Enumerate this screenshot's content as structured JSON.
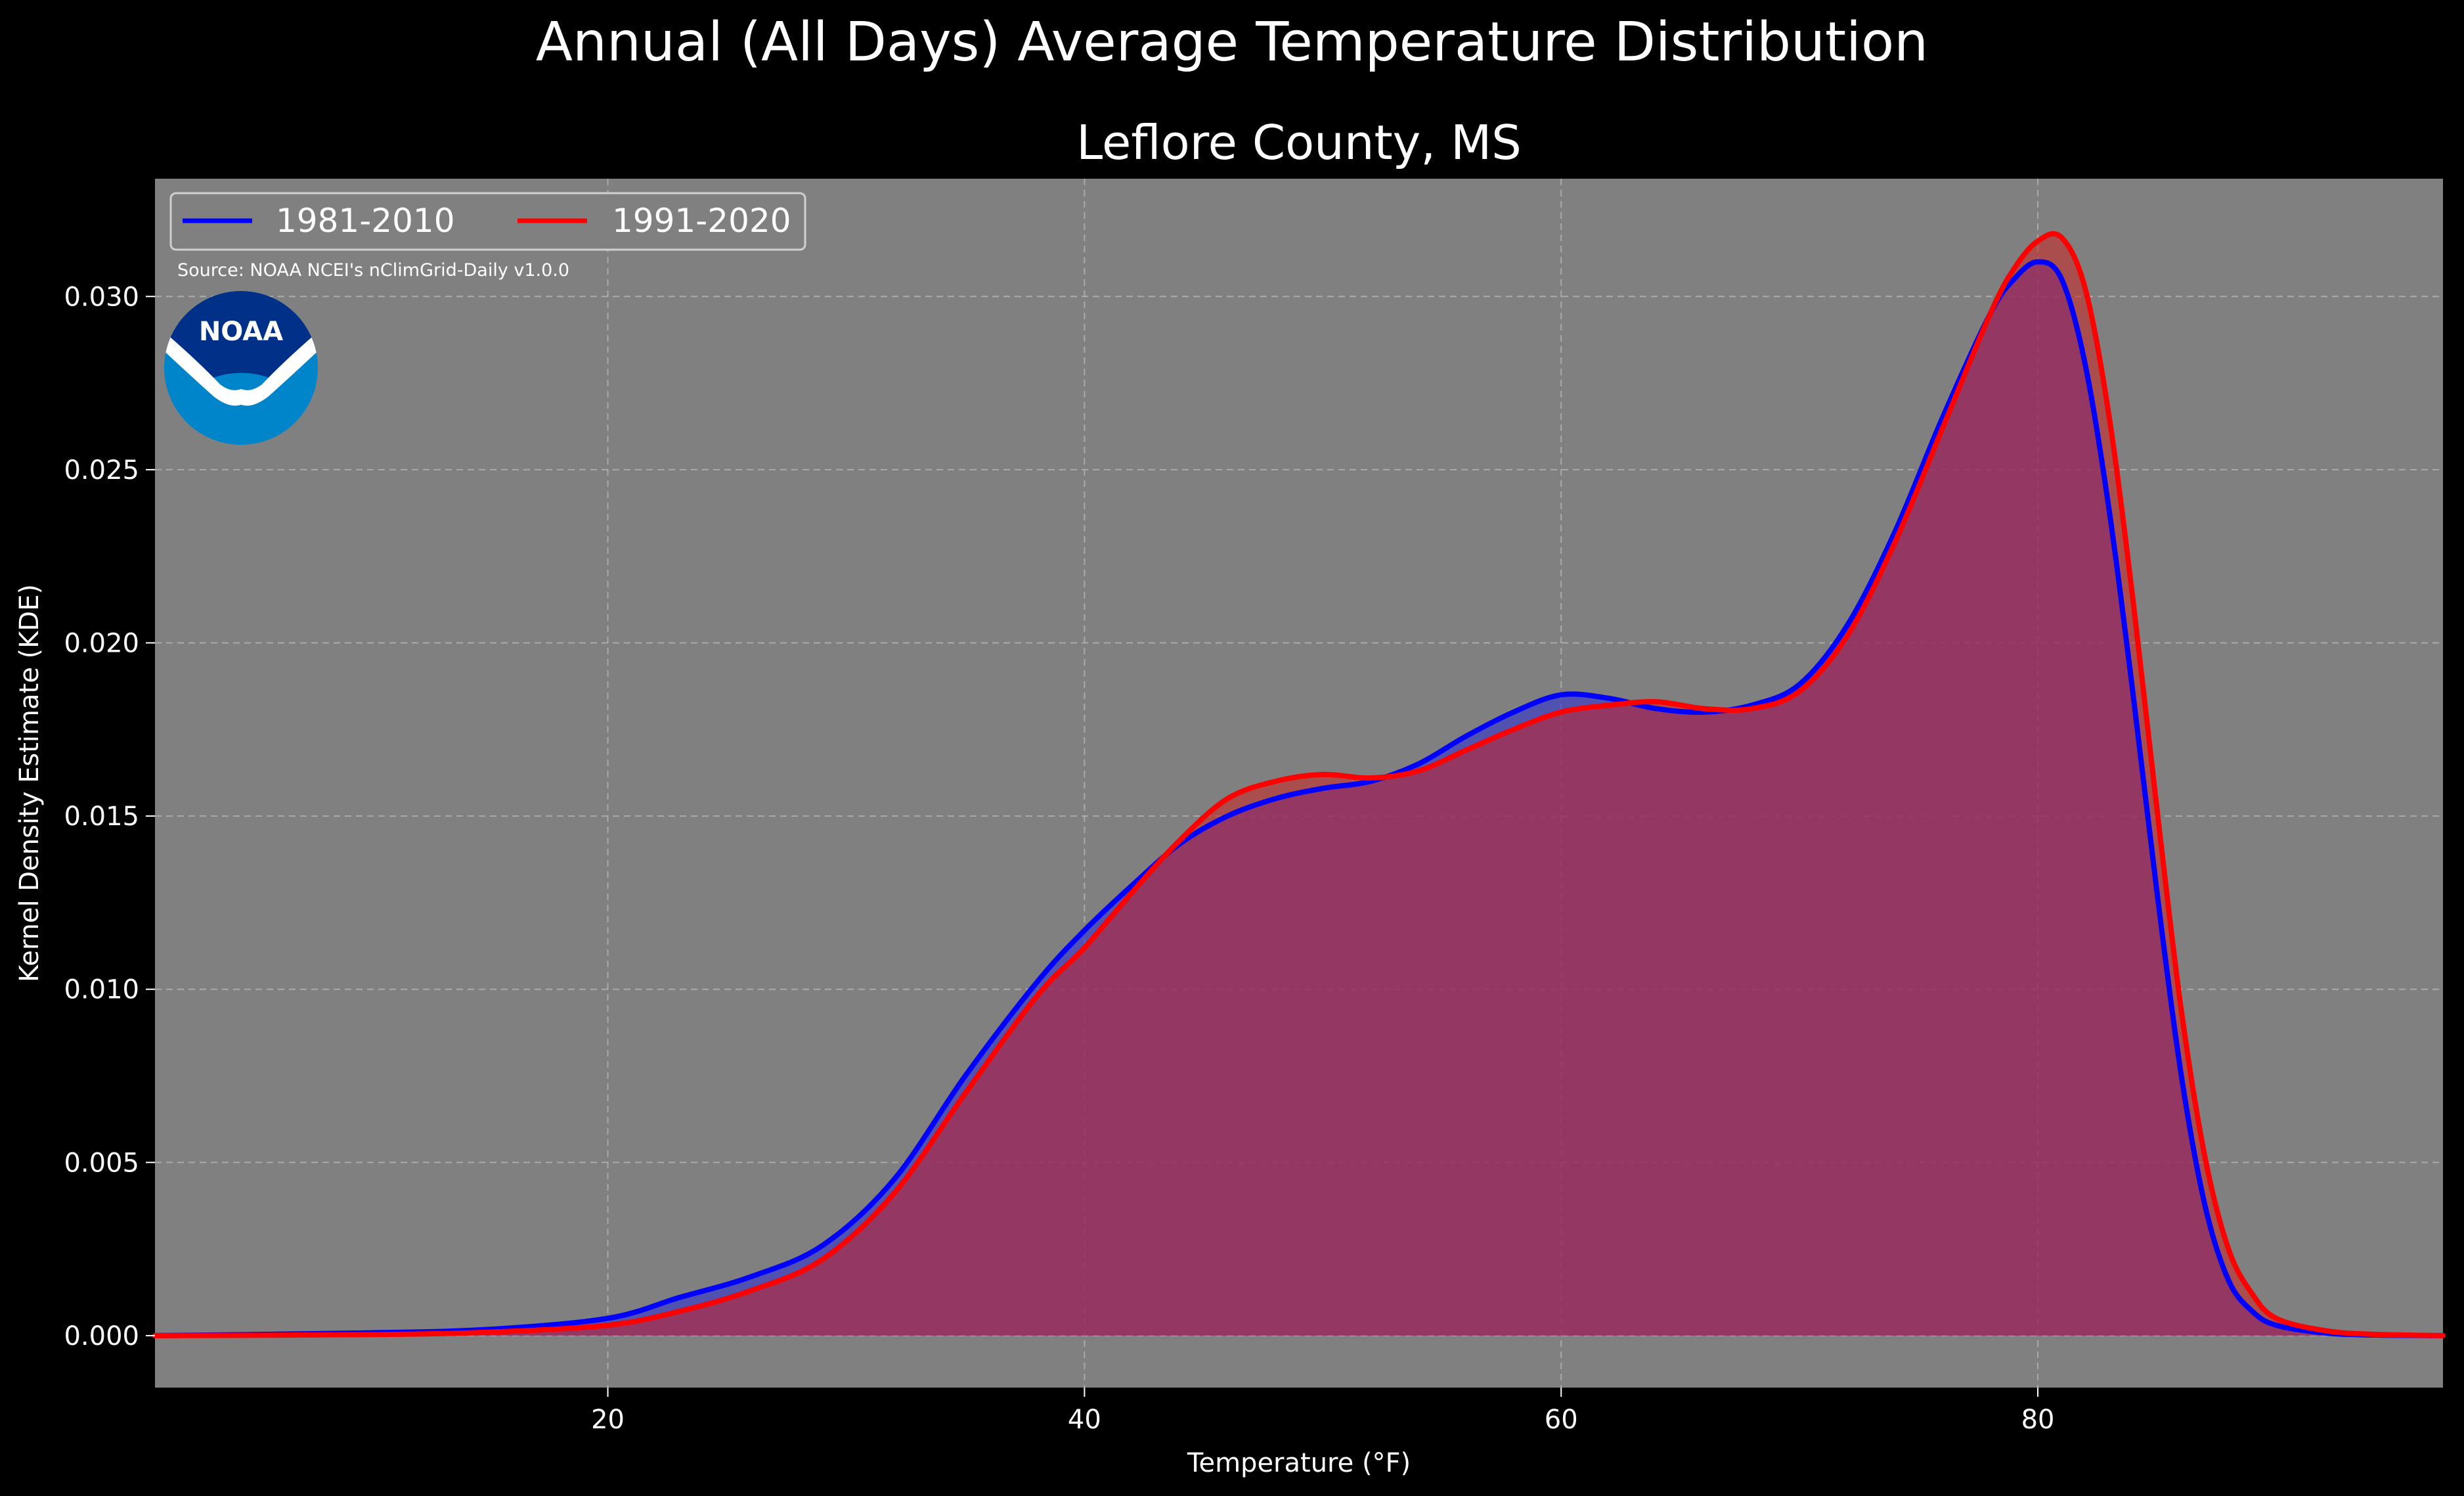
{
  "chart_data": {
    "type": "area",
    "title": "Annual (All Days) Average Temperature Distribution",
    "subtitle": "Leflore County, MS",
    "xlabel": "Temperature (°F)",
    "ylabel": "Kernel Density Estimate (KDE)",
    "xlim": [
      1,
      97
    ],
    "ylim": [
      -0.0015,
      0.0334
    ],
    "x_ticks": [
      20,
      40,
      60,
      80
    ],
    "x_tick_labels": [
      "20",
      "40",
      "60",
      "80"
    ],
    "y_ticks": [
      0.0,
      0.005,
      0.01,
      0.015,
      0.02,
      0.025,
      0.03
    ],
    "y_tick_labels": [
      "0.000",
      "0.005",
      "0.010",
      "0.015",
      "0.020",
      "0.025",
      "0.030"
    ],
    "grid": true,
    "legend_position": "top-left",
    "source_note": "Source: NOAA NCEI's nClimGrid-Daily v1.0.0",
    "logo_text": "NOAA",
    "series": [
      {
        "name": "1981-2010",
        "color": "#0000ff",
        "fill_color": "#3333cc",
        "x": [
          1,
          10,
          15,
          20,
          23,
          26,
          29,
          32,
          35,
          38,
          40,
          42,
          44,
          46,
          48,
          50,
          52,
          54,
          56,
          58,
          60,
          62,
          64,
          66,
          68,
          70,
          72,
          74,
          76,
          78,
          79,
          80,
          81,
          82,
          83,
          84,
          85,
          86,
          87,
          88,
          89,
          90,
          92,
          94,
          97
        ],
        "y": [
          0.0,
          8e-05,
          0.00018,
          0.0005,
          0.0011,
          0.0017,
          0.0026,
          0.0045,
          0.0075,
          0.0102,
          0.0117,
          0.013,
          0.0142,
          0.015,
          0.0155,
          0.0158,
          0.016,
          0.0165,
          0.0173,
          0.018,
          0.0185,
          0.0184,
          0.0181,
          0.018,
          0.0182,
          0.0188,
          0.0205,
          0.0232,
          0.0265,
          0.0295,
          0.0305,
          0.031,
          0.0305,
          0.028,
          0.0238,
          0.0185,
          0.0128,
          0.0076,
          0.0038,
          0.0016,
          0.0007,
          0.0003,
          8e-05,
          2e-05,
          0.0
        ]
      },
      {
        "name": "1991-2020",
        "color": "#ff0000",
        "fill_color": "#cc2222",
        "x": [
          1,
          10,
          15,
          20,
          23,
          26,
          29,
          32,
          35,
          38,
          40,
          42,
          44,
          46,
          48,
          50,
          52,
          54,
          56,
          58,
          60,
          62,
          64,
          66,
          68,
          70,
          72,
          74,
          76,
          78,
          79,
          80,
          81,
          82,
          83,
          84,
          85,
          86,
          87,
          88,
          89,
          90,
          92,
          94,
          97
        ],
        "y": [
          0.0,
          3e-05,
          0.0001,
          0.0003,
          0.0007,
          0.0013,
          0.0022,
          0.0041,
          0.007,
          0.0098,
          0.0112,
          0.0128,
          0.0143,
          0.0155,
          0.016,
          0.0162,
          0.0161,
          0.0163,
          0.0169,
          0.0175,
          0.018,
          0.0182,
          0.0183,
          0.0181,
          0.0181,
          0.0186,
          0.0202,
          0.0229,
          0.0262,
          0.0295,
          0.0308,
          0.0316,
          0.0317,
          0.0302,
          0.0265,
          0.0212,
          0.0152,
          0.0095,
          0.0052,
          0.0025,
          0.0012,
          0.0005,
          0.00015,
          4e-05,
          0.0
        ]
      }
    ]
  }
}
